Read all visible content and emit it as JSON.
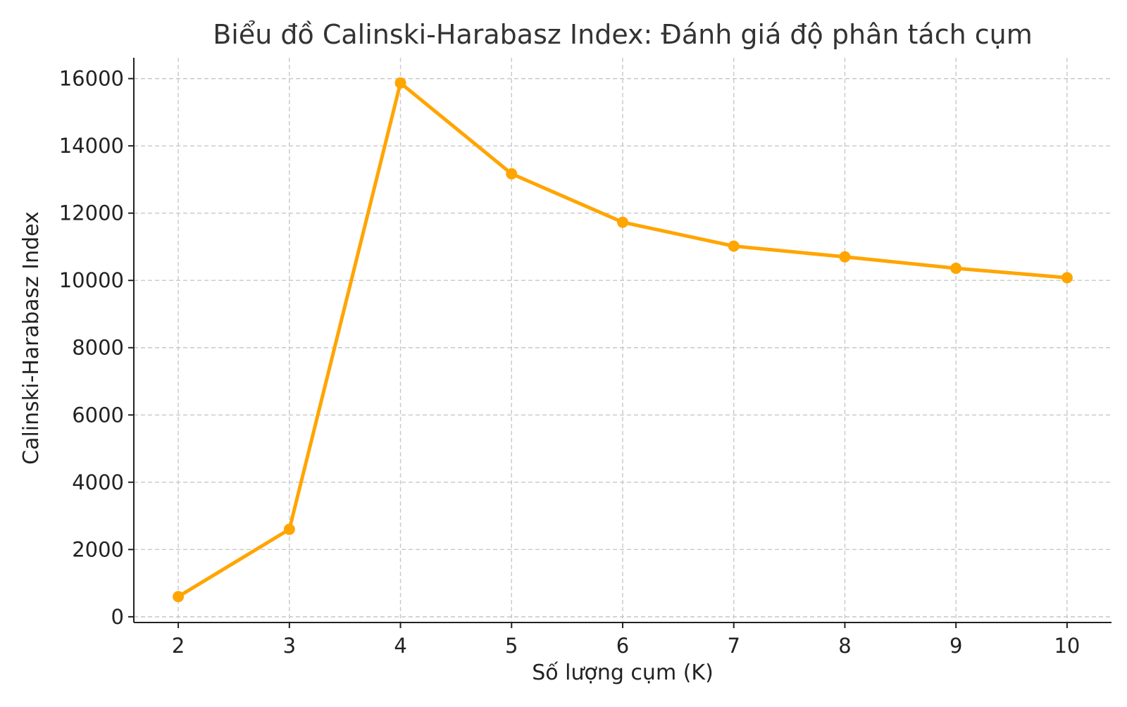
{
  "chart_data": {
    "type": "line",
    "title": "Biểu đồ Calinski-Harabasz Index: Đánh giá độ phân tách cụm",
    "xlabel": "Số lượng cụm (K)",
    "ylabel": "Calinski-Harabasz Index",
    "x": [
      2,
      3,
      4,
      5,
      6,
      7,
      8,
      9,
      10
    ],
    "series": [
      {
        "values": [
          600,
          2600,
          15870,
          13170,
          11730,
          11020,
          10700,
          10360,
          10080
        ],
        "color": "#FFA500",
        "marker": "circle"
      }
    ],
    "xticks": [
      "2",
      "3",
      "4",
      "5",
      "6",
      "7",
      "8",
      "9",
      "10"
    ],
    "yticks": [
      "0",
      "2000",
      "4000",
      "6000",
      "8000",
      "10000",
      "12000",
      "14000",
      "16000"
    ],
    "xlim": [
      1.6,
      10.4
    ],
    "ylim": [
      -170,
      16620
    ],
    "grid": true,
    "legend": "none"
  }
}
